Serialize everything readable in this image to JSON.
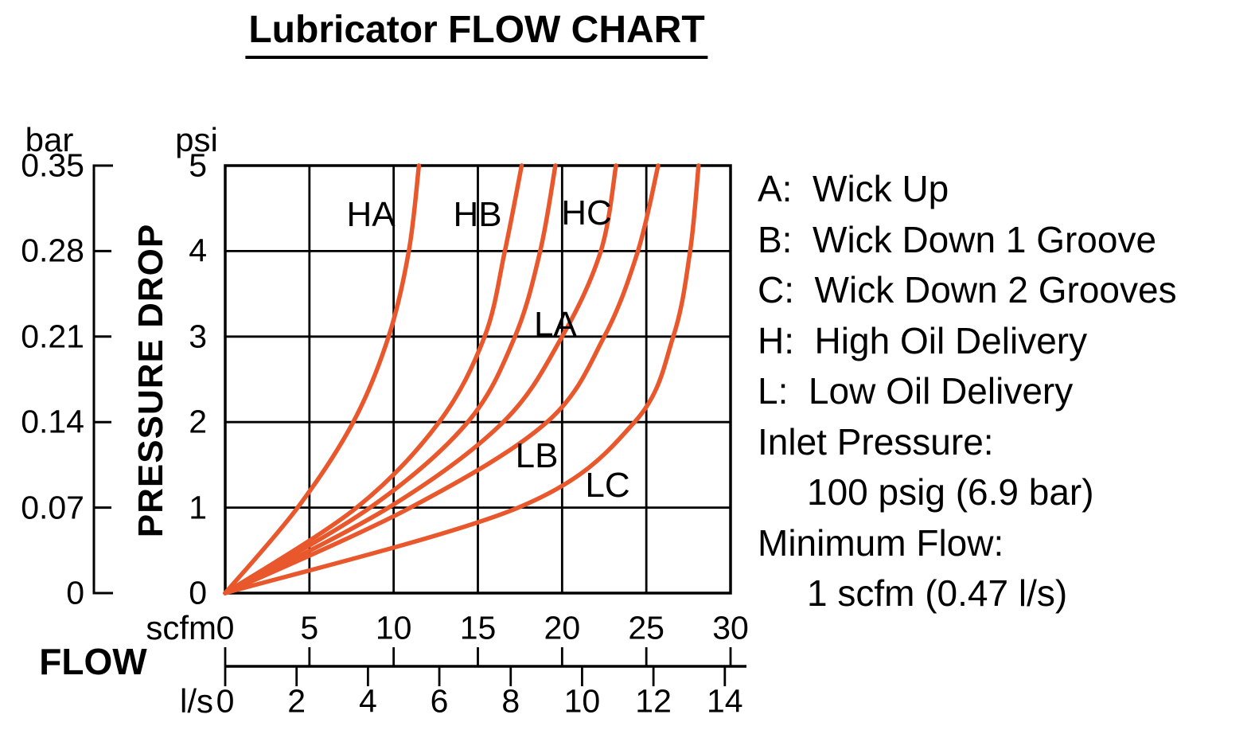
{
  "title": "Lubricator FLOW CHART",
  "chart_data": {
    "type": "line",
    "title": "Lubricator FLOW CHART",
    "curve_color": "#E8582C",
    "axis_color": "#000000",
    "x_axis": {
      "label": "FLOW",
      "scales": [
        {
          "unit": "scfm",
          "ticks": [
            0,
            5,
            10,
            15,
            20,
            25,
            30
          ],
          "min": 0,
          "max": 30
        },
        {
          "unit": "l/s",
          "ticks": [
            0,
            2,
            4,
            6,
            8,
            10,
            12,
            14
          ],
          "scfm_per_unit": 2.1186
        }
      ]
    },
    "y_axis": {
      "label": "PRESSURE DROP",
      "scales": [
        {
          "unit": "bar",
          "ticks": [
            "0.35",
            "0.28",
            "0.21",
            "0.14",
            "0.07",
            "0"
          ]
        },
        {
          "unit": "psi",
          "ticks": [
            "5",
            "4",
            "3",
            "2",
            "1",
            "0"
          ],
          "min": 0,
          "max": 5
        }
      ]
    },
    "series": [
      {
        "name": "HA",
        "points": [
          {
            "psi": 0,
            "scfm": 0
          },
          {
            "psi": 1,
            "scfm": 4.3
          },
          {
            "psi": 2,
            "scfm": 7.6
          },
          {
            "psi": 3,
            "scfm": 9.7
          },
          {
            "psi": 4,
            "scfm": 10.9
          },
          {
            "psi": 5,
            "scfm": 11.5
          }
        ],
        "label_at": {
          "scfm": 8.65,
          "psi": 4.42
        }
      },
      {
        "name": "HB",
        "points": [
          {
            "psi": 0,
            "scfm": 0
          },
          {
            "psi": 1,
            "scfm": 7.8
          },
          {
            "psi": 2,
            "scfm": 12.7
          },
          {
            "psi": 3,
            "scfm": 15.4
          },
          {
            "psi": 4,
            "scfm": 16.6
          },
          {
            "psi": 5,
            "scfm": 17.6
          }
        ],
        "label_at": {
          "scfm": 14.98,
          "psi": 4.42
        }
      },
      {
        "name": "HC",
        "points": [
          {
            "psi": 0,
            "scfm": 0
          },
          {
            "psi": 1,
            "scfm": 8.6
          },
          {
            "psi": 2,
            "scfm": 14.4
          },
          {
            "psi": 3,
            "scfm": 17.2
          },
          {
            "psi": 4,
            "scfm": 18.7
          },
          {
            "psi": 5,
            "scfm": 19.6
          }
        ],
        "label_at": {
          "scfm": 21.45,
          "psi": 4.44
        }
      },
      {
        "name": "LA",
        "points": [
          {
            "psi": 0,
            "scfm": 0
          },
          {
            "psi": 1,
            "scfm": 9.7
          },
          {
            "psi": 2,
            "scfm": 16.5
          },
          {
            "psi": 3,
            "scfm": 20.0
          },
          {
            "psi": 4,
            "scfm": 22.3
          },
          {
            "psi": 5,
            "scfm": 23.2
          }
        ],
        "label_at": {
          "scfm": 19.6,
          "psi": 3.14
        }
      },
      {
        "name": "LB",
        "points": [
          {
            "psi": 0,
            "scfm": 0
          },
          {
            "psi": 1,
            "scfm": 11.0
          },
          {
            "psi": 2,
            "scfm": 19.1
          },
          {
            "psi": 3,
            "scfm": 22.5
          },
          {
            "psi": 4,
            "scfm": 24.5
          },
          {
            "psi": 5,
            "scfm": 25.7
          }
        ],
        "label_at": {
          "scfm": 18.5,
          "psi": 1.6
        }
      },
      {
        "name": "LC",
        "points": [
          {
            "psi": 0,
            "scfm": 0
          },
          {
            "psi": 1,
            "scfm": 17.4
          },
          {
            "psi": 2,
            "scfm": 24.3
          },
          {
            "psi": 3,
            "scfm": 26.6
          },
          {
            "psi": 4,
            "scfm": 27.6
          },
          {
            "psi": 5,
            "scfm": 28.1
          }
        ],
        "label_at": {
          "scfm": 22.7,
          "psi": 1.26
        }
      }
    ],
    "legend": [
      {
        "text": "A:  Wick Up",
        "indent": false
      },
      {
        "text": "B:  Wick Down 1 Groove",
        "indent": false
      },
      {
        "text": "C:  Wick Down 2 Grooves",
        "indent": false
      },
      {
        "text": "H:  High Oil Delivery",
        "indent": false
      },
      {
        "text": "L:  Low Oil Delivery",
        "indent": false
      },
      {
        "text": "Inlet Pressure:",
        "indent": false
      },
      {
        "text": "100 psig (6.9 bar)",
        "indent": true
      },
      {
        "text": "Minimum Flow:",
        "indent": false
      },
      {
        "text": "1 scfm (0.47 l/s)",
        "indent": true
      }
    ]
  }
}
